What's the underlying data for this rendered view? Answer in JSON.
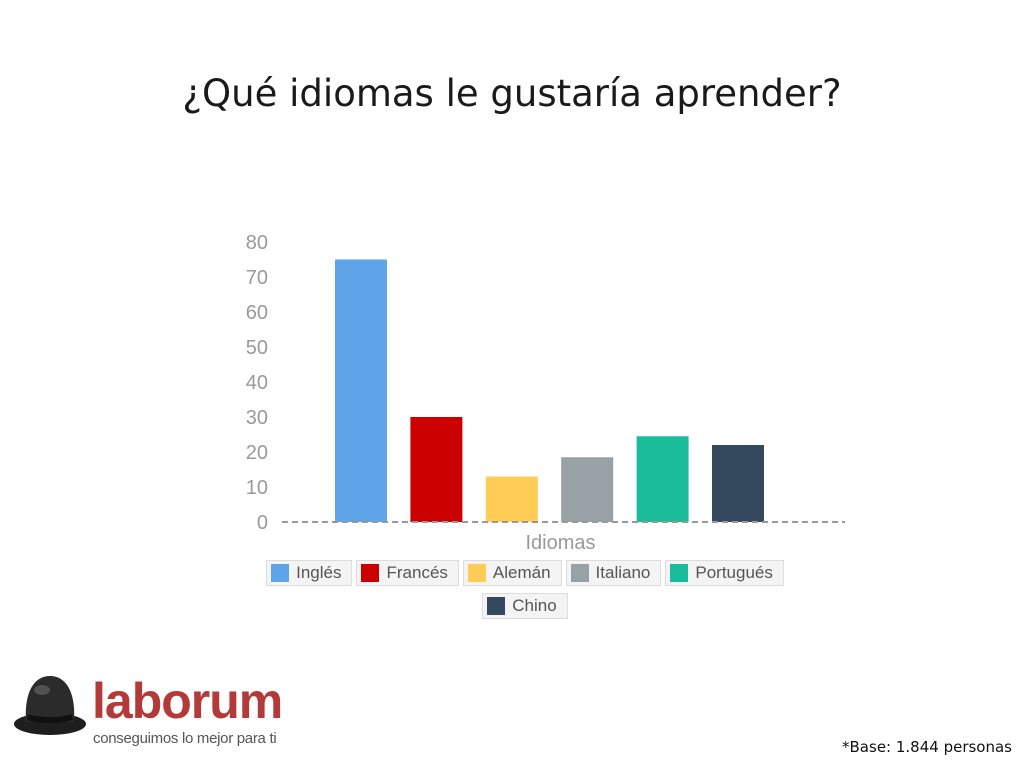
{
  "slide": {
    "title": "¿Qué idiomas le gustaría aprender?",
    "footnote": "*Base: 1.844 personas"
  },
  "logo": {
    "icon": "bowler-hat-icon",
    "wordmark": "laborum",
    "tagline": "conseguimos lo mejor para ti",
    "color": "#b43a3a"
  },
  "chart_data": {
    "type": "bar",
    "title": "",
    "xlabel": "Idiomas",
    "ylabel": "",
    "ylim": [
      0,
      80
    ],
    "yticks": [
      0,
      10,
      20,
      30,
      40,
      50,
      60,
      70,
      80
    ],
    "grid": false,
    "legend_position": "bottom",
    "series": [
      {
        "name": "Inglés",
        "value": 75,
        "color": "#5da5e8"
      },
      {
        "name": "Francés",
        "value": 30,
        "color": "#cc0000"
      },
      {
        "name": "Alemán",
        "value": 13,
        "color": "#ffcc55"
      },
      {
        "name": "Italiano",
        "value": 18.5,
        "color": "#98a2a6"
      },
      {
        "name": "Portugués",
        "value": 24.5,
        "color": "#1abc9c"
      },
      {
        "name": "Chino",
        "value": 22,
        "color": "#34495e"
      }
    ]
  }
}
